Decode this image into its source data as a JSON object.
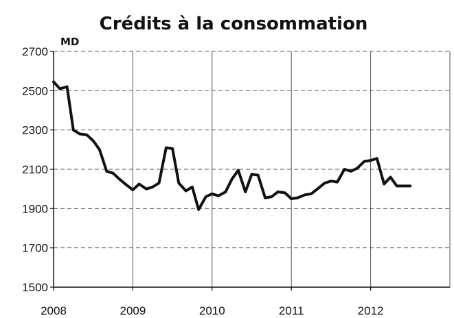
{
  "chart_data": {
    "type": "line",
    "title": "Crédits à la consommation",
    "unit_label": "MD",
    "xlabel": "",
    "ylabel": "",
    "x_ticks": [
      "2008",
      "2009",
      "2010",
      "2011",
      "2012"
    ],
    "x_tick_values": [
      2008,
      2009,
      2010,
      2011,
      2012
    ],
    "xlim": [
      2008,
      2013
    ],
    "y_ticks": [
      "1500",
      "1700",
      "1900",
      "2100",
      "2300",
      "2500",
      "2700"
    ],
    "ylim": [
      1500,
      2700
    ],
    "grid": {
      "vertical": "solid",
      "horizontal": "dashed"
    },
    "colors": {
      "line": "#111111",
      "grid": "#555555",
      "axis": "#111111"
    },
    "series": [
      {
        "x": [
          2008.0,
          2008.08,
          2008.17,
          2008.25,
          2008.33,
          2008.42,
          2008.5,
          2008.58,
          2008.67,
          2008.75,
          2008.83,
          2008.92,
          2009.0,
          2009.08,
          2009.17,
          2009.25,
          2009.33,
          2009.42,
          2009.5,
          2009.58,
          2009.67,
          2009.75,
          2009.83,
          2009.92,
          2010.0,
          2010.08,
          2010.17,
          2010.25,
          2010.33,
          2010.42,
          2010.5,
          2010.58,
          2010.67,
          2010.75,
          2010.83,
          2010.92,
          2011.0,
          2011.08,
          2011.17,
          2011.25,
          2011.33,
          2011.42,
          2011.5,
          2011.58,
          2011.67,
          2011.75,
          2011.83,
          2011.92,
          2012.0,
          2012.08,
          2012.17,
          2012.25,
          2012.33,
          2012.42,
          2012.5
        ],
        "values": [
          2545,
          2510,
          2520,
          2300,
          2280,
          2275,
          2245,
          2200,
          2090,
          2080,
          2050,
          2020,
          1995,
          2025,
          2000,
          2010,
          2030,
          2210,
          2205,
          2030,
          1990,
          2010,
          1895,
          1960,
          1975,
          1965,
          1985,
          2050,
          2095,
          1985,
          2075,
          2070,
          1955,
          1960,
          1985,
          1980,
          1950,
          1955,
          1970,
          1975,
          2000,
          2030,
          2040,
          2035,
          2100,
          2090,
          2105,
          2140,
          2145,
          2155,
          2025,
          2060,
          2015,
          2015,
          2015
        ]
      }
    ]
  }
}
